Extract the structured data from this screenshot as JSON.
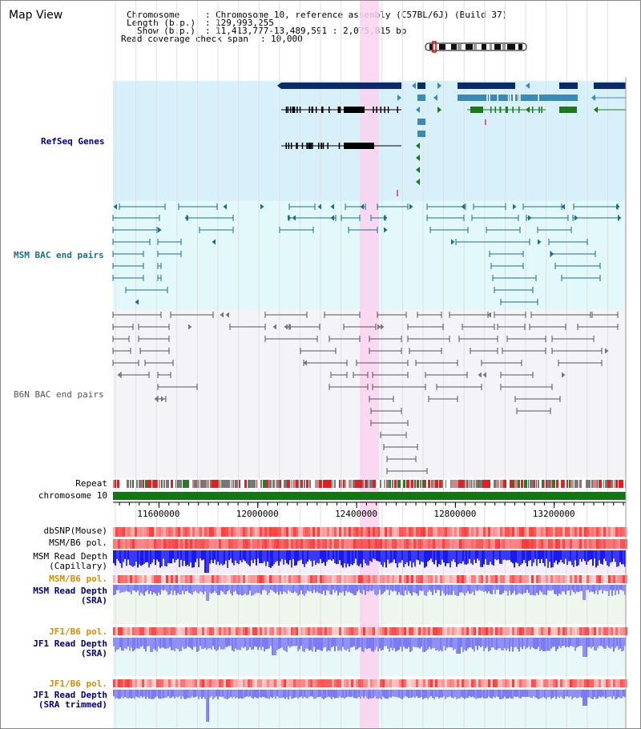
{
  "title": "Map View",
  "info": {
    "chromosome_label": "Chromosome",
    "chromosome_value": "Chromosome 10, reference assembly (C57BL/6J) (Build 37)",
    "length_label": "Length (b.p.)",
    "length_value": "129,993,255",
    "show_label": "Show (b.p.)",
    "show_value": "11,413,777-13,489,591 : 2,075,815 bp",
    "coverage_label": "Read coverage check span",
    "coverage_value": "10,000"
  },
  "tracks": {
    "refseq": "RefSeq Genes",
    "msm_bac": "MSM BAC end pairs",
    "b6n_bac": "B6N BAC end pairs",
    "repeat": "Repeat",
    "chromosome": "chromosome 10",
    "dbsnp": "dbSNP(Mouse)",
    "msm_b6_pol_1": "MSM/B6 pol.",
    "msm_read_depth_cap": "MSM Read Depth\n(Capillary)",
    "msm_b6_pol_2": "MSM/B6 pol.",
    "msm_read_depth_sra": "MSM Read Depth\n(SRA)",
    "jf1_b6_pol_1": "JF1/B6 pol.",
    "jf1_read_depth_sra": "JF1 Read Depth\n(SRA)",
    "jf1_b6_pol_2": "JF1/B6 pol.",
    "jf1_read_depth_trimmed": "JF1 Read Depth\n(SRA trimmed)"
  },
  "axis": {
    "ticks": [
      {
        "label": "11600000",
        "value": 11600000
      },
      {
        "label": "12000000",
        "value": 12000000
      },
      {
        "label": "12400000",
        "value": 12400000
      },
      {
        "label": "12800000",
        "value": 12800000
      },
      {
        "label": "13200000",
        "value": 13200000
      }
    ]
  },
  "colors": {
    "refseq_bg": "#d8f0fa",
    "msm_bg": "#e2f8fa",
    "b6n_bg": "#f4f4f8",
    "highlight": "#fad2f0",
    "gene_navy": "#0a2a6e",
    "gene_teal": "#3a8ab4",
    "gene_green": "#1a7a1a",
    "bac_teal": "#1a6e8a",
    "bac_grey": "#555555",
    "chrom_green": "#117711",
    "depth_blue": "#3333ee",
    "depth_light": "#8888ff",
    "label_navy": "#00008b",
    "label_teal": "#1a6e8a",
    "label_orange": "#e08a00"
  }
}
